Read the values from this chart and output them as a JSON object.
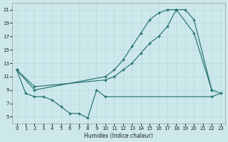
{
  "xlabel": "Humidex (Indice chaleur)",
  "xlim": [
    -0.5,
    23.5
  ],
  "ylim": [
    4,
    22
  ],
  "xticks": [
    0,
    1,
    2,
    3,
    4,
    5,
    6,
    7,
    8,
    9,
    10,
    11,
    12,
    13,
    14,
    15,
    16,
    17,
    18,
    19,
    20,
    21,
    22,
    23
  ],
  "yticks": [
    5,
    7,
    9,
    11,
    13,
    15,
    17,
    19,
    21
  ],
  "bg_color": "#cce8eb",
  "line_color": "#1e6b6b",
  "grid_color": "#b8d8dc",
  "line1_x": [
    0,
    2,
    10,
    11,
    12,
    13,
    14,
    15,
    16,
    17,
    18,
    19,
    20,
    22
  ],
  "line1_y": [
    12,
    9.0,
    11.0,
    12.0,
    13.5,
    15.5,
    17.5,
    19.5,
    20.5,
    21.0,
    21.0,
    21.0,
    19.5,
    9.0
  ],
  "line2_x": [
    0,
    2,
    10,
    11,
    12,
    13,
    14,
    15,
    16,
    17,
    18,
    20,
    22,
    23
  ],
  "line2_y": [
    12,
    9.5,
    10.5,
    11.0,
    12.0,
    13.0,
    14.5,
    16.0,
    17.0,
    18.5,
    21.0,
    17.5,
    9.0,
    8.5
  ],
  "line3_x": [
    0,
    1,
    2,
    3,
    4,
    5,
    6,
    7,
    8,
    9,
    10,
    22,
    23
  ],
  "line3_y": [
    12,
    8.5,
    8.0,
    8.0,
    7.5,
    6.5,
    5.5,
    5.5,
    4.8,
    9.0,
    8.0,
    8.0,
    8.5
  ]
}
